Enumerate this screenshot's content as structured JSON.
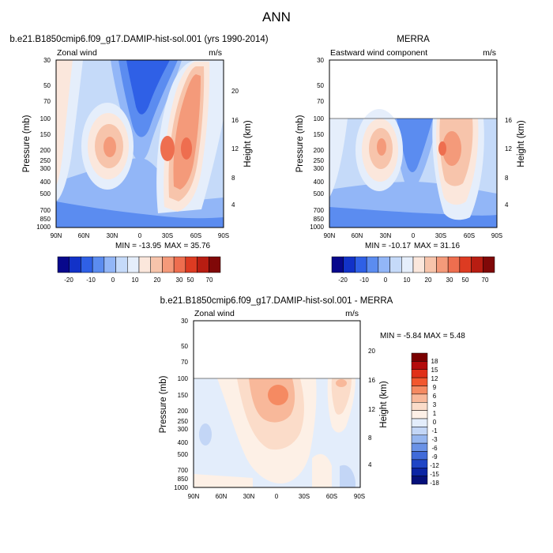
{
  "figure": {
    "title": "ANN"
  },
  "chart_data": [
    {
      "type": "heatmap",
      "panel": "model",
      "case_title": "b.e21.B1850cmip6.f09_g17.DAMIP-hist-sol.001 (yrs 1990-2014)",
      "left_label": "Zonal wind",
      "units": "m/s",
      "ylabel": "Pressure (mb)",
      "y2label": "Height (km)",
      "x_ticks": [
        "90N",
        "60N",
        "30N",
        "0",
        "30S",
        "60S",
        "90S"
      ],
      "y_ticks": [
        "30",
        "50",
        "70",
        "100",
        "150",
        "200",
        "250",
        "300",
        "400",
        "500",
        "700",
        "850",
        "1000"
      ],
      "y2_ticks": [
        "20",
        "16",
        "12",
        "8",
        "4"
      ],
      "min_label": "MIN = -13.95",
      "max_label": "MAX =  35.76",
      "colorbar_labels": [
        "-20",
        "-10",
        "0",
        "10",
        "20",
        "30",
        "50",
        "70"
      ]
    },
    {
      "type": "heatmap",
      "panel": "obs",
      "case_title": "MERRA",
      "left_label": "Eastward wind component",
      "units": "m/s",
      "ylabel": "Pressure (mb)",
      "y2label": "Height (km)",
      "x_ticks": [
        "90N",
        "60N",
        "30N",
        "0",
        "30S",
        "60S",
        "90S"
      ],
      "y_ticks": [
        "30",
        "50",
        "70",
        "100",
        "150",
        "200",
        "250",
        "300",
        "400",
        "500",
        "700",
        "850",
        "1000"
      ],
      "y2_ticks": [
        "16",
        "12",
        "8",
        "4"
      ],
      "min_label": "MIN = -10.17",
      "max_label": "MAX =  31.16",
      "colorbar_labels": [
        "-20",
        "-10",
        "0",
        "10",
        "20",
        "30",
        "50",
        "70"
      ]
    },
    {
      "type": "heatmap",
      "panel": "difference",
      "case_title": "b.e21.B1850cmip6.f09_g17.DAMIP-hist-sol.001 - MERRA",
      "left_label": "Zonal wind",
      "units": "m/s",
      "ylabel": "Pressure (mb)",
      "y2label": "Height (km)",
      "x_ticks": [
        "90N",
        "60N",
        "30N",
        "0",
        "30S",
        "60S",
        "90S"
      ],
      "y_ticks": [
        "30",
        "50",
        "70",
        "100",
        "150",
        "200",
        "250",
        "300",
        "400",
        "500",
        "700",
        "850",
        "1000"
      ],
      "y2_ticks": [
        "20",
        "16",
        "12",
        "8",
        "4"
      ],
      "minmax_label": "MIN =  -5.84  MAX =   5.48",
      "colorbar_labels": [
        "18",
        "15",
        "12",
        "9",
        "6",
        "3",
        "1",
        "0",
        "-1",
        "-3",
        "-6",
        "-9",
        "-12",
        "-15",
        "-18"
      ]
    }
  ],
  "colors": {
    "abs_scale": [
      "#08088c",
      "#1232c8",
      "#2f60e6",
      "#5b8cf0",
      "#92b6f7",
      "#c5daf9",
      "#e5eefb",
      "#fbe7dc",
      "#f7c4ab",
      "#f49a7a",
      "#ee6e4f",
      "#dd3b22",
      "#b81d12",
      "#800808"
    ],
    "diff_scale": [
      "#7a0000",
      "#b40c0c",
      "#e03018",
      "#f2572e",
      "#f58a62",
      "#f8b89a",
      "#fbdcc9",
      "#fdf0e6",
      "#e3edfb",
      "#c3d6f6",
      "#96b6ef",
      "#6a92e6",
      "#416bd9",
      "#1f45c6",
      "#0b25a4",
      "#05107a"
    ],
    "blank_bg": "#ffffff"
  }
}
